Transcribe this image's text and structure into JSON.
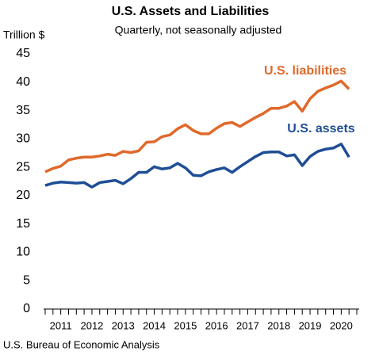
{
  "chart_data": {
    "type": "line",
    "title": "U.S. Assets and Liabilities",
    "subtitle": "Quarterly, not seasonally adjusted",
    "y_axis_label": "Trillion $",
    "source": "U.S. Bureau of Economic Analysis",
    "x": [
      2011,
      2011.25,
      2011.5,
      2011.75,
      2012,
      2012.25,
      2012.5,
      2012.75,
      2013,
      2013.25,
      2013.5,
      2013.75,
      2014,
      2014.25,
      2014.5,
      2014.75,
      2015,
      2015.25,
      2015.5,
      2015.75,
      2016,
      2016.25,
      2016.5,
      2016.75,
      2017,
      2017.25,
      2017.5,
      2017.75,
      2018,
      2018.25,
      2018.5,
      2018.75,
      2019,
      2019.25,
      2019.5,
      2019.75,
      2020,
      2020.25,
      2020.5,
      2020.75
    ],
    "series": [
      {
        "name": "U.S. liabilities",
        "color": "#e0692a",
        "values": [
          24.2,
          24.8,
          25.2,
          26.3,
          26.6,
          26.8,
          26.8,
          27.0,
          27.3,
          27.1,
          27.8,
          27.6,
          27.9,
          29.4,
          29.5,
          30.4,
          30.7,
          31.8,
          32.5,
          31.5,
          30.9,
          30.9,
          31.9,
          32.7,
          32.9,
          32.2,
          33.0,
          33.8,
          34.5,
          35.4,
          35.4,
          35.8,
          36.6,
          34.9,
          37.1,
          38.4,
          39.0,
          39.5,
          40.2,
          38.8
        ]
      },
      {
        "name": "U.S. assets",
        "color": "#1f4e96",
        "values": [
          21.8,
          22.2,
          22.4,
          22.3,
          22.2,
          22.3,
          21.5,
          22.3,
          22.5,
          22.7,
          22.1,
          23.0,
          24.1,
          24.1,
          25.1,
          24.7,
          24.9,
          25.7,
          24.9,
          23.6,
          23.5,
          24.2,
          24.6,
          24.9,
          24.1,
          25.1,
          26.0,
          26.9,
          27.6,
          27.7,
          27.7,
          27.0,
          27.2,
          25.3,
          26.9,
          27.8,
          28.2,
          28.4,
          29.1,
          26.8
        ]
      }
    ],
    "xlim": [
      2011,
      2021
    ],
    "xticks": [
      {
        "value": 2011.5,
        "label": "2011"
      },
      {
        "value": 2012.5,
        "label": "2012"
      },
      {
        "value": 2013.5,
        "label": "2013"
      },
      {
        "value": 2014.5,
        "label": "2014"
      },
      {
        "value": 2015.5,
        "label": "2015"
      },
      {
        "value": 2016.5,
        "label": "2016"
      },
      {
        "value": 2017.5,
        "label": "2017"
      },
      {
        "value": 2018.5,
        "label": "2018"
      },
      {
        "value": 2019.5,
        "label": "2019"
      },
      {
        "value": 2020.5,
        "label": "2020"
      }
    ],
    "ylim": [
      0,
      45
    ],
    "yticks": [
      0,
      5,
      10,
      15,
      20,
      25,
      30,
      35,
      40,
      45
    ],
    "grid": false
  }
}
